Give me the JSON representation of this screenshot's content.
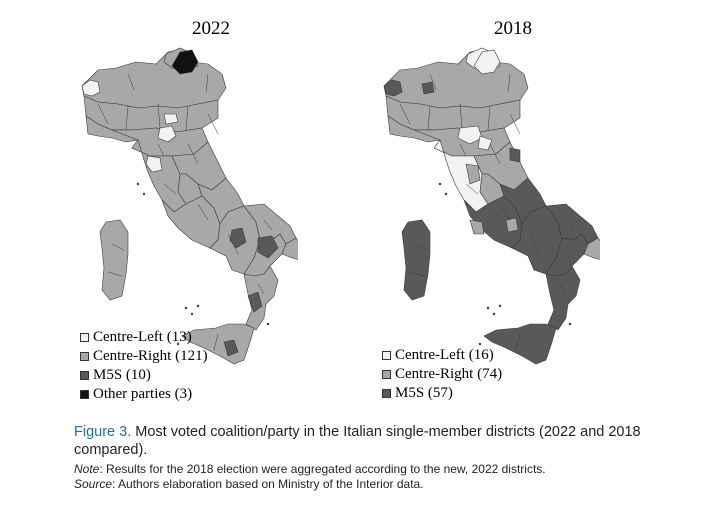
{
  "colors": {
    "Centre-Left": "#f2f2f2",
    "Centre-Right": "#a8a8a8",
    "M5S": "#595959",
    "Other parties": "#111111",
    "border": "#3a3a3a"
  },
  "maps": [
    {
      "title": "2022",
      "legend": [
        {
          "party": "Centre-Left",
          "label": "Centre-Left (13)",
          "seats": 13
        },
        {
          "party": "Centre-Right",
          "label": "Centre-Right (121)",
          "seats": 121
        },
        {
          "party": "M5S",
          "label": "M5S (10)",
          "seats": 10
        },
        {
          "party": "Other parties",
          "label": "Other parties (3)",
          "seats": 3
        }
      ]
    },
    {
      "title": "2018",
      "legend": [
        {
          "party": "Centre-Left",
          "label": "Centre-Left (16)",
          "seats": 16
        },
        {
          "party": "Centre-Right",
          "label": "Centre-Right (74)",
          "seats": 74
        },
        {
          "party": "M5S",
          "label": "M5S (57)",
          "seats": 57
        }
      ]
    }
  ],
  "caption": {
    "label": "Figure 3.",
    "text": " Most voted coalition/party in the Italian single-member districts (2022 and 2018 compared)."
  },
  "note": {
    "label": "Note",
    "text": ": Results for the 2018 election were aggregated according to the new, 2022 districts."
  },
  "source": {
    "label": "Source",
    "text": ": Authors elaboration based on Ministry of the Interior data."
  }
}
